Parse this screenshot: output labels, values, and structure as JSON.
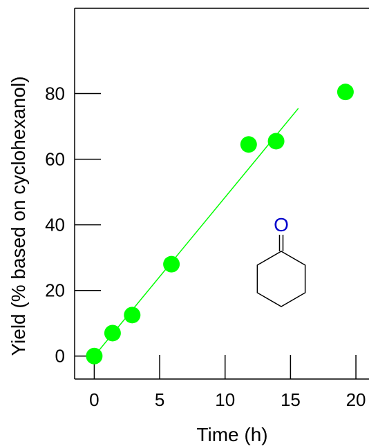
{
  "chart_data": {
    "type": "scatter",
    "xlabel": "Time (h)",
    "ylabel": "Yield (% based on cyclohexanol)",
    "xlim": [
      -1.5,
      21
    ],
    "ylim": [
      -7,
      106
    ],
    "x_ticks": [
      0,
      5,
      10,
      15,
      20
    ],
    "x_tick_labels": [
      "0",
      "5",
      "10",
      "15",
      "20"
    ],
    "y_ticks": [
      0,
      20,
      40,
      60,
      80
    ],
    "y_tick_labels": [
      "0",
      "20",
      "40",
      "60",
      "80"
    ],
    "grid": false,
    "series": [
      {
        "x": [
          0,
          1.4,
          2.9,
          5.9,
          11.8,
          13.9,
          19.2
        ],
        "y": [
          0,
          7,
          12.5,
          28,
          64.5,
          65.5,
          80.5
        ],
        "color": "#00ff00",
        "marker": "circle"
      }
    ],
    "trendline": {
      "x": [
        0,
        15.6
      ],
      "y": [
        0,
        75.5
      ],
      "color": "#00ff00"
    },
    "structure": {
      "name": "cyclohexanone",
      "atom_label": "O",
      "atom_color": "#0000cc",
      "bond_color": "#000000"
    }
  }
}
